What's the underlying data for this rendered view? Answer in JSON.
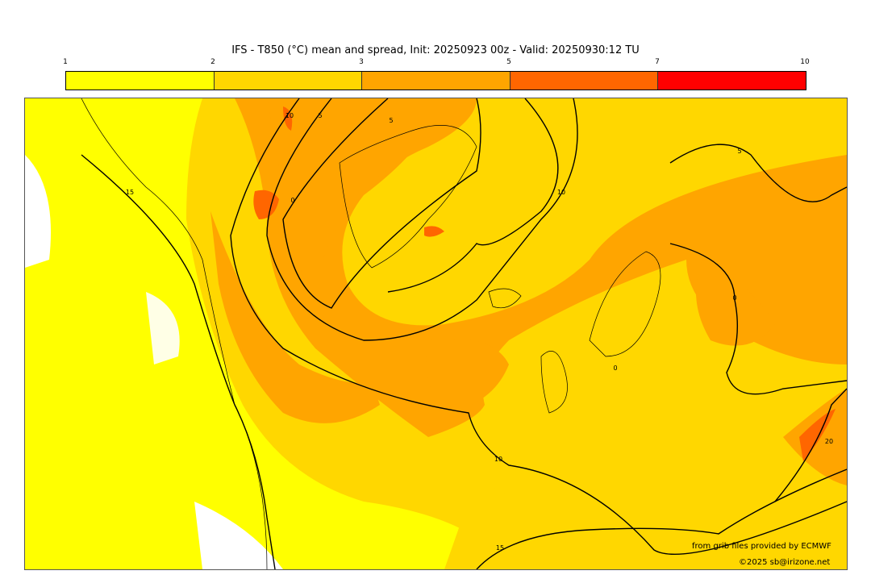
{
  "title": "IFS - T850 (°C) mean and spread, Init: 20250923 00z - Valid: 20250930:12 TU",
  "colorbar": {
    "ticks": [
      "1",
      "2",
      "3",
      "5",
      "7",
      "10"
    ],
    "colors": [
      "#ffff00",
      "#ffd700",
      "#ffa500",
      "#ff6600",
      "#ff0000"
    ]
  },
  "contour_labels": [
    "15",
    "10",
    "5",
    "0",
    "5",
    "10",
    "5",
    "0",
    "0",
    "10",
    "15",
    "20"
  ],
  "credits": {
    "source": "from grib files provided by ECMWF",
    "copyright": "©2025 sb@irizone.net"
  }
}
